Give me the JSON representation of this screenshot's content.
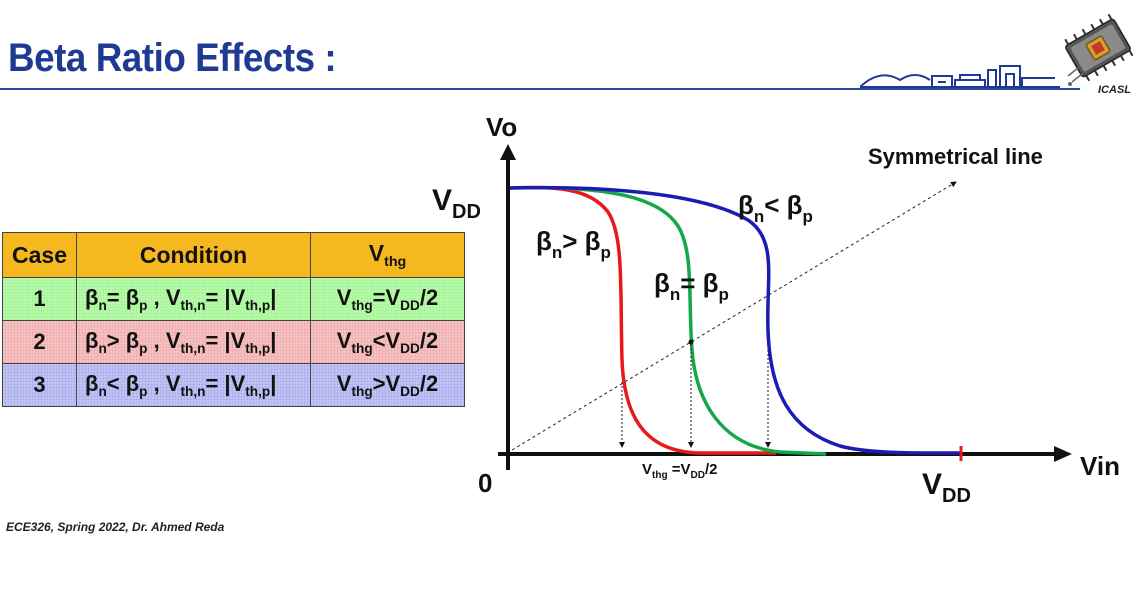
{
  "slide": {
    "title": "Beta Ratio Effects :",
    "footer": "ECE326, Spring 2022, Dr. Ahmed Reda",
    "logo_text": "ICASL"
  },
  "table": {
    "headers": [
      "Case",
      "Condition",
      "V_thg"
    ],
    "rows": [
      {
        "case": "1",
        "condition": "βn= βp , Vth,n= |Vth,p|",
        "vthg": "Vthg=VDD/2",
        "color": "#9af58a"
      },
      {
        "case": "2",
        "condition": "βn> βp , Vth,n= |Vth,p|",
        "vthg": "Vthg<VDD/2",
        "color": "#f0a6a6"
      },
      {
        "case": "3",
        "condition": "βn< βp , Vth,n= |Vth,p|",
        "vthg": "Vthg>VDD/2",
        "color": "#a4a8ec"
      }
    ],
    "header_color": "#f5b81e"
  },
  "plot": {
    "y_axis_label": "Vo",
    "x_axis_label": "Vin",
    "origin_label": "0",
    "vdd_y_label": "VDD",
    "vdd_x_label": "VDD",
    "symmetric_label": "Symmetrical line",
    "vthg_label": "Vthg =VDD/2",
    "curves": [
      {
        "name": "βn> βp",
        "color": "#e8191b"
      },
      {
        "name": "βn= βp",
        "color": "#12a84a"
      },
      {
        "name": "βn< βp",
        "color": "#1c1cb4"
      }
    ]
  }
}
